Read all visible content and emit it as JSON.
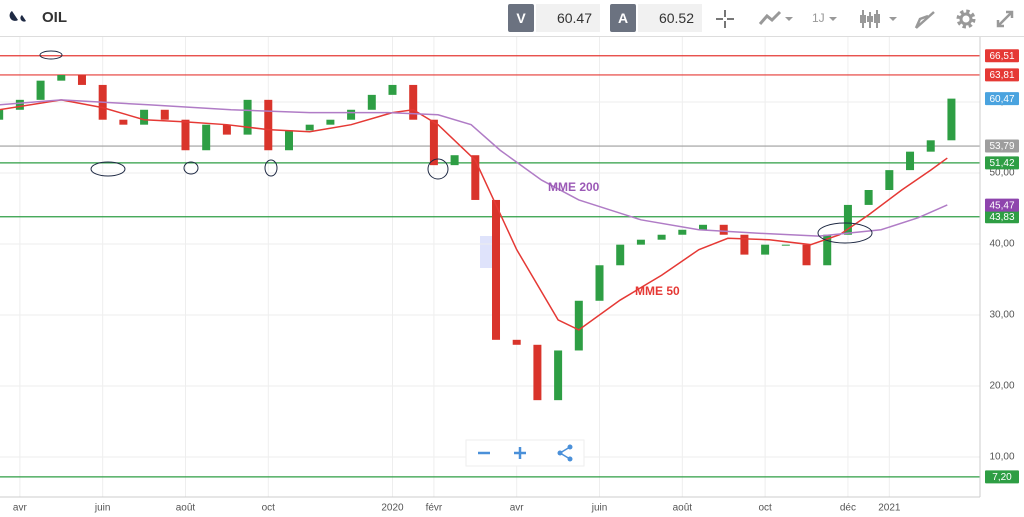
{
  "toolbar": {
    "symbol": "OIL",
    "sell_label": "V",
    "sell_price": "60.47",
    "buy_label": "A",
    "buy_price": "60.52",
    "period": "1J"
  },
  "chart_data": {
    "type": "candlestick",
    "xlim": [
      -0.48,
      23.19
    ],
    "ylim": [
      5.77,
      69.15
    ],
    "xticks": [
      {
        "value": 0,
        "label": "avr"
      },
      {
        "value": 2,
        "label": "juin"
      },
      {
        "value": 4,
        "label": "août"
      },
      {
        "value": 6,
        "label": "oct"
      },
      {
        "value": 9,
        "label": "2020"
      },
      {
        "value": 10,
        "label": "févr"
      },
      {
        "value": 12,
        "label": "avr"
      },
      {
        "value": 14,
        "label": "juin"
      },
      {
        "value": 16,
        "label": "août"
      },
      {
        "value": 18,
        "label": "oct"
      },
      {
        "value": 20,
        "label": "déc"
      },
      {
        "value": 21,
        "label": "2021"
      }
    ],
    "yticks": [
      {
        "value": 10,
        "label": "10,00"
      },
      {
        "value": 20,
        "label": "20,00"
      },
      {
        "value": 30,
        "label": "30,00"
      },
      {
        "value": 40,
        "label": "40,00"
      },
      {
        "value": 50,
        "label": "50,00"
      },
      {
        "value": 60,
        "label": "60,00"
      }
    ],
    "grid": true,
    "up_color": "#2e9e44",
    "down_color": "#d9342b",
    "x": [
      -0.5,
      0,
      0.5,
      1,
      1.5,
      2,
      2.5,
      3,
      3.5,
      4,
      4.5,
      5,
      5.5,
      6,
      6.5,
      7,
      7.5,
      8,
      8.5,
      9,
      9.5,
      10,
      10.5,
      11,
      11.5,
      12,
      12.5,
      13,
      13.5,
      14,
      14.5,
      15,
      15.5,
      16,
      16.5,
      17,
      17.5,
      18,
      18.5,
      19,
      19.5,
      20,
      20.5,
      21,
      21.5,
      22,
      22.5
    ],
    "open": [
      57.5,
      58.9,
      60.3,
      63,
      63.8,
      62.4,
      57.5,
      56.8,
      58.9,
      57.5,
      53.2,
      56.8,
      55.4,
      60.3,
      53.2,
      56,
      56.8,
      57.5,
      58.9,
      61,
      62.4,
      57.5,
      51.1,
      52.5,
      46.2,
      26.5,
      25.8,
      18,
      25,
      32,
      37,
      39.9,
      40.6,
      41.3,
      42,
      42.7,
      41.3,
      38.5,
      39.9,
      39.9,
      37,
      41.3,
      45.5,
      47.6,
      50.4,
      53,
      54.6
    ],
    "close": [
      58.9,
      60.3,
      63,
      63.8,
      62.4,
      57.5,
      56.8,
      58.9,
      57.5,
      53.2,
      56.8,
      55.4,
      60.3,
      53.2,
      56,
      56.8,
      57.5,
      58.9,
      61,
      62.4,
      57.5,
      51.1,
      52.5,
      46.2,
      26.5,
      25.8,
      18,
      25,
      32,
      37,
      39.9,
      40.6,
      41.3,
      42,
      42.7,
      41.3,
      38.5,
      39.9,
      39.9,
      37,
      41.3,
      45.5,
      47.6,
      50.4,
      53,
      54.6,
      60.47
    ],
    "series": [
      {
        "name": "MME 50",
        "color": "#e53935",
        "x": [
          -0.5,
          1,
          2,
          3,
          4,
          5,
          6,
          7,
          8,
          9,
          9.5,
          10.1,
          11,
          12,
          13,
          13.5,
          14.5,
          15.5,
          16.4,
          17.1,
          18.1,
          19.1,
          19.8,
          20.5,
          21.3,
          22,
          22.4
        ],
        "values": [
          58.9,
          60.3,
          59.2,
          57.5,
          57.2,
          56.8,
          56.1,
          55.8,
          56.8,
          58.5,
          58.9,
          56.8,
          51.8,
          39.2,
          29.3,
          27.9,
          32.1,
          35.6,
          39.2,
          40.8,
          40.6,
          39.9,
          41.3,
          44.1,
          47.6,
          50.4,
          52.1
        ]
      },
      {
        "name": "MME 200",
        "color": "#b07cc6",
        "x": [
          -0.5,
          1,
          3.1,
          5.1,
          7,
          8.9,
          10.1,
          10.9,
          11.6,
          12.6,
          13.5,
          15,
          16.4,
          17.9,
          19.3,
          20.8,
          21.7,
          22.4
        ],
        "values": [
          59.6,
          60.3,
          59.6,
          58.9,
          58.5,
          58.5,
          58.2,
          56.8,
          53.2,
          49,
          46.2,
          43.4,
          42,
          41.5,
          41.1,
          42,
          43.7,
          45.5
        ]
      }
    ],
    "annotations": [
      "MME 200",
      "MME 50"
    ],
    "levels": [
      {
        "value": 66.51,
        "label": "66,51",
        "color": "#e53935"
      },
      {
        "value": 63.81,
        "label": "63,81",
        "color": "#e53935"
      },
      {
        "value": 53.79,
        "label": "53,79",
        "color": "#9e9e9e"
      },
      {
        "value": 51.42,
        "label": "51,42",
        "color": "#2e9e44"
      },
      {
        "value": 43.83,
        "label": "43,83",
        "color": "#2e9e44"
      },
      {
        "value": 7.2,
        "label": "7,20",
        "color": "#2e9e44"
      }
    ],
    "price_tags": [
      {
        "value": 60.47,
        "label": "60,47",
        "color": "#4aa3df"
      },
      {
        "value": 45.47,
        "label": "45,47",
        "color": "#8e44ad"
      }
    ]
  }
}
